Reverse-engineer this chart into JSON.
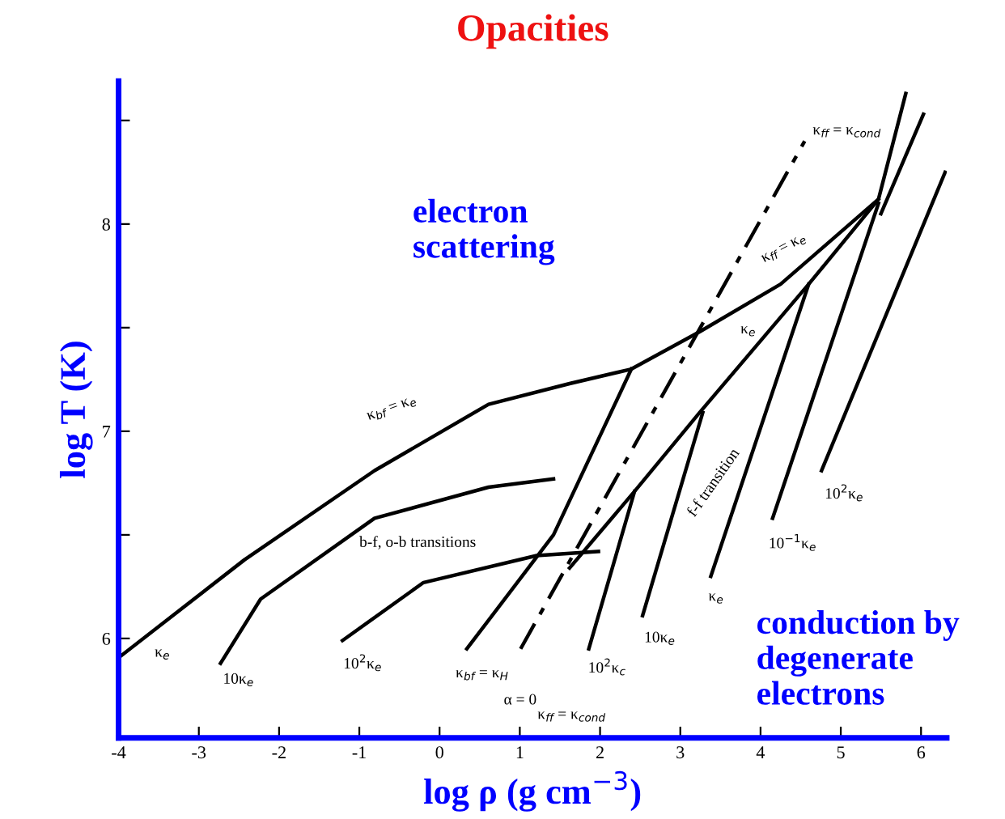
{
  "chart_data": {
    "type": "line",
    "title": "Opacities",
    "xlabel": "log ρ (g cm$^{−3}$)",
    "ylabel": "log T (K)",
    "xlim": [
      -4,
      6.32
    ],
    "ylim": [
      5.52,
      8.69
    ],
    "xticks": [
      -4,
      -3,
      -2,
      -1,
      0,
      1,
      2,
      3,
      4,
      5,
      6
    ],
    "yticks": [
      6,
      {
        "value": 6.5,
        "label": null
      },
      7,
      {
        "value": 7.5,
        "label": null
      },
      8,
      {
        "value": 8.5,
        "label": null
      }
    ],
    "grid": false,
    "legend": false,
    "marker": "none",
    "series": [
      {
        "color": "#000000",
        "x": [
          -3.99,
          -2.43,
          -0.81,
          0.61,
          1.62,
          2.39,
          3.24,
          4.25,
          5.47
        ],
        "values": [
          5.91,
          6.38,
          6.81,
          7.13,
          7.23,
          7.3,
          7.48,
          7.71,
          8.12
        ]
      },
      {
        "color": "#000000",
        "x": [
          0.34,
          1.42,
          2.39
        ],
        "values": [
          5.95,
          6.5,
          7.3
        ]
      },
      {
        "color": "#000000",
        "x": [
          1.62,
          2.43,
          3.24,
          4.6,
          5.47,
          5.81
        ],
        "values": [
          6.34,
          6.71,
          7.09,
          7.71,
          8.12,
          8.63
        ]
      },
      {
        "color": "#000000",
        "line_style": "dashed",
        "x": [
          1.01,
          4.55
        ],
        "values": [
          5.95,
          8.4
        ]
      },
      {
        "color": "#000000",
        "x": [
          -2.73,
          -2.23,
          -0.81,
          0.61,
          1.42
        ],
        "values": [
          5.88,
          6.19,
          6.58,
          6.73,
          6.77
        ]
      },
      {
        "color": "#000000",
        "x": [
          -1.21,
          -0.2,
          1.21,
          1.98
        ],
        "values": [
          5.99,
          6.27,
          6.4,
          6.42
        ]
      },
      {
        "color": "#000000",
        "x": [
          1.86,
          2.43
        ],
        "values": [
          5.95,
          6.71
        ]
      },
      {
        "color": "#000000",
        "x": [
          2.53,
          3.28
        ],
        "values": [
          6.11,
          7.09
        ]
      },
      {
        "color": "#000000",
        "x": [
          3.38,
          4.6
        ],
        "values": [
          6.3,
          7.71
        ]
      },
      {
        "color": "#000000",
        "x": [
          4.15,
          5.47
        ],
        "values": [
          6.58,
          8.1
        ]
      },
      {
        "color": "#000000",
        "x": [
          4.76,
          6.3
        ],
        "values": [
          6.81,
          8.25
        ]
      },
      {
        "color": "#000000",
        "x": [
          5.5,
          6.03
        ],
        "values": [
          8.05,
          8.53
        ]
      }
    ],
    "annotations": [
      "electron\nscattering",
      "conduction by\ndegenerate\nelectrons",
      "κ$_{bf}$ = κ$_{e}$",
      "κ$_{ff}$ = κ$_{e}$",
      "κ$_{ff}$ = κ$_{cond}$",
      "κ$_{ff}$ = κ$_{cond}$",
      "κ$_{bf}$ = κ$_{H}$",
      "α = 0",
      "κ$_{e}$",
      "10κ$_{e}$",
      "10$^{2}$κ$_{e}$",
      "b-f, o-b transitions",
      "f-f transition",
      "10$^{2}$κ$_{c}$",
      "10κ$_{e}$",
      "κ$_{e}$",
      "10$^{−1}$κ$_{e}$",
      "10$^{2}$κ$_{e}$",
      "κ$_{e}$"
    ]
  }
}
